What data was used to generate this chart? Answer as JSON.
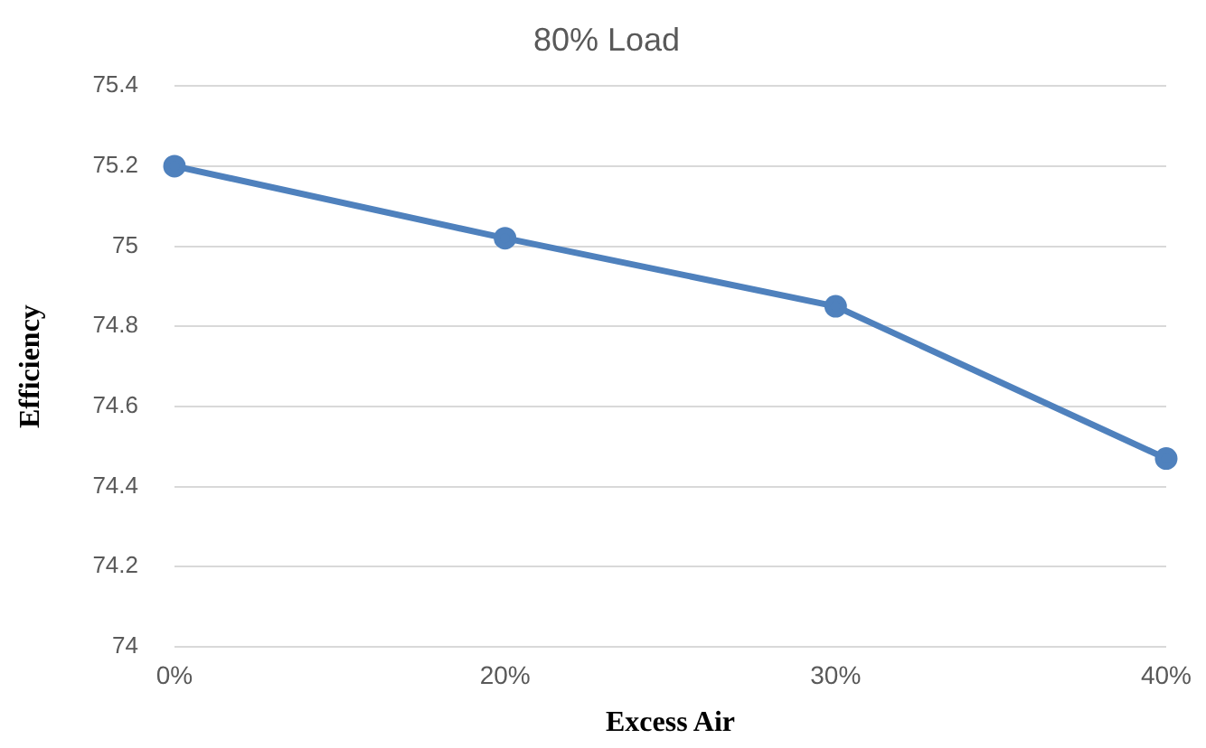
{
  "chart_data": {
    "type": "line",
    "title": "80% Load",
    "xlabel": "Excess Air",
    "ylabel": "Efficiency",
    "categories": [
      "0%",
      "20%",
      "30%",
      "40%"
    ],
    "series": [
      {
        "color": "#4f81bd",
        "values": [
          75.2,
          75.02,
          74.85,
          74.47
        ]
      }
    ],
    "ylim": [
      74,
      75.4
    ],
    "yticks": [
      74,
      74.2,
      74.4,
      74.6,
      74.8,
      75,
      75.2,
      75.4
    ],
    "grid": "y",
    "marker": "circle",
    "line_style": "solid",
    "legend": false
  }
}
